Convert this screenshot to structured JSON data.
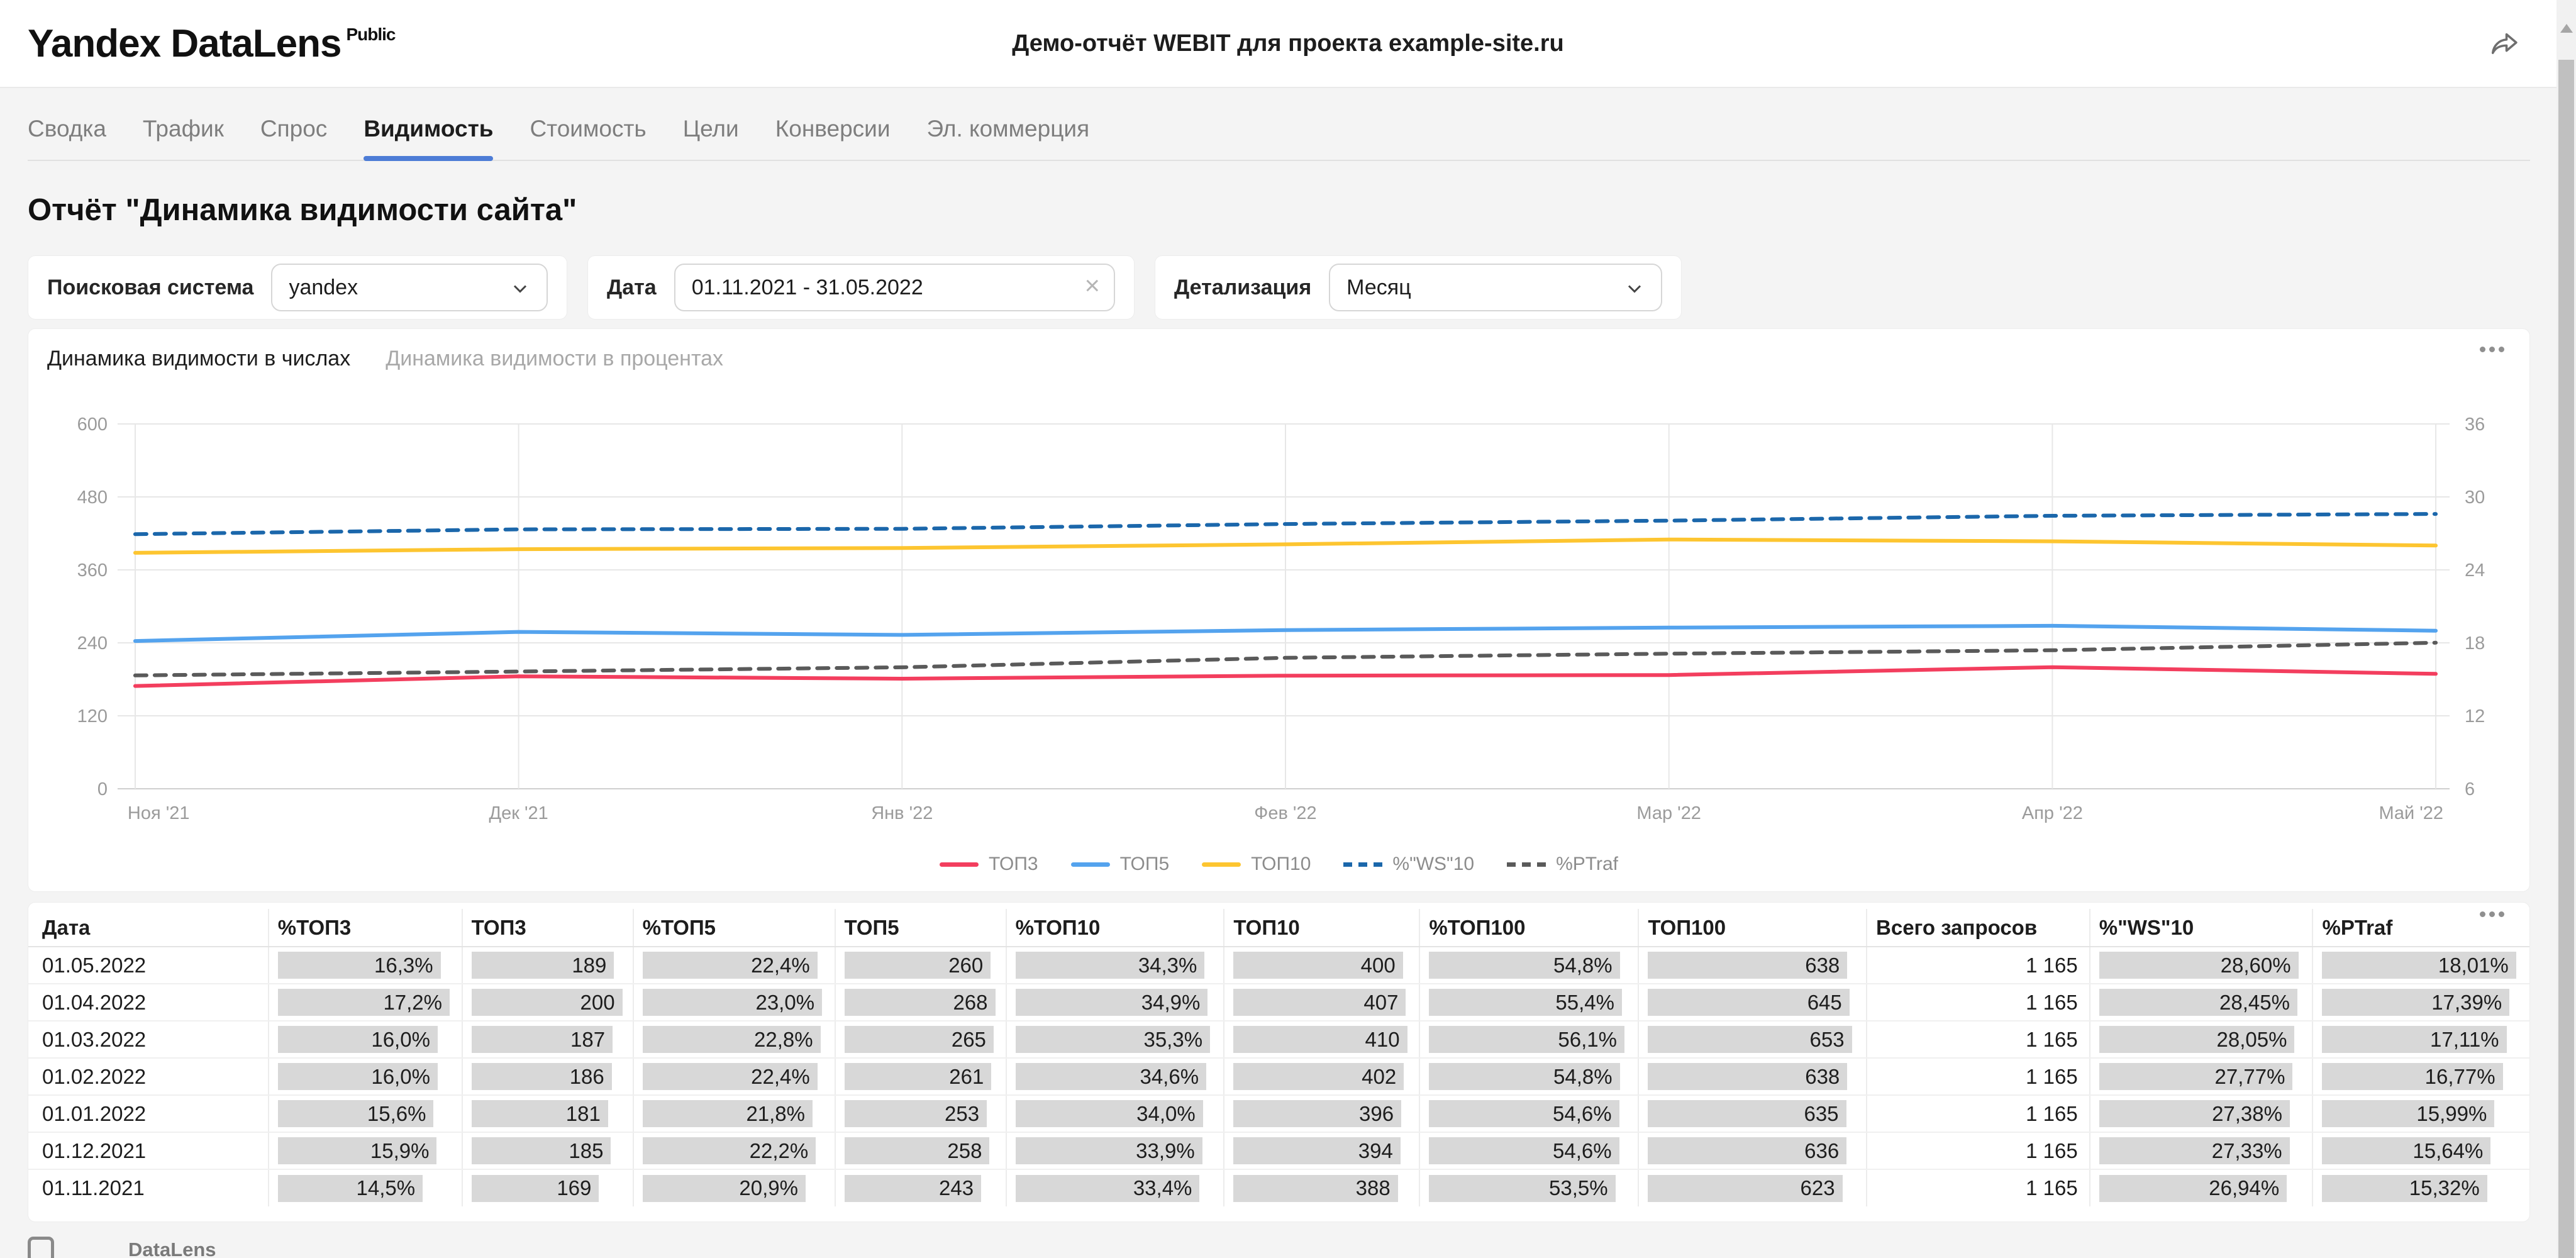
{
  "header": {
    "logo": "Yandex DataLens",
    "logo_badge": "Public",
    "title": "Демо-отчёт WEBIT для проекта example-site.ru"
  },
  "nav_tabs": [
    {
      "label": "Сводка",
      "active": false
    },
    {
      "label": "Трафик",
      "active": false
    },
    {
      "label": "Спрос",
      "active": false
    },
    {
      "label": "Видимость",
      "active": true
    },
    {
      "label": "Стоимость",
      "active": false
    },
    {
      "label": "Цели",
      "active": false
    },
    {
      "label": "Конверсии",
      "active": false
    },
    {
      "label": "Эл. коммерция",
      "active": false
    }
  ],
  "accent_color": "#4d7cd6",
  "page_title": "Отчёт \"Динамика видимости сайта\"",
  "filters": {
    "search_engine": {
      "label": "Поисковая система",
      "value": "yandex"
    },
    "date": {
      "label": "Дата",
      "value": "01.11.2021 - 31.05.2022"
    },
    "detail": {
      "label": "Детализация",
      "value": "Месяц"
    }
  },
  "chart_widget": {
    "tabs": [
      {
        "label": "Динамика видимости в числах",
        "active": true
      },
      {
        "label": "Динамика видимости в процентах",
        "active": false
      }
    ]
  },
  "chart_data": {
    "type": "line",
    "x": [
      "Ноя '21",
      "Дек '21",
      "Янв '22",
      "Фев '22",
      "Мар '22",
      "Апр '22",
      "Май '22"
    ],
    "left_axis": {
      "ticks": [
        0,
        120,
        240,
        360,
        480,
        600
      ],
      "range": [
        0,
        600
      ]
    },
    "right_axis": {
      "ticks": [
        6,
        12,
        18,
        24,
        30,
        36
      ],
      "range": [
        6,
        36
      ]
    },
    "grid": true,
    "legend_position": "bottom",
    "series": [
      {
        "name": "ТОП3",
        "color": "#f33e5e",
        "axis": "left",
        "dash": false,
        "values": [
          169,
          185,
          181,
          186,
          187,
          200,
          189
        ]
      },
      {
        "name": "ТОП5",
        "color": "#54a3ee",
        "axis": "left",
        "dash": false,
        "values": [
          243,
          258,
          253,
          261,
          265,
          268,
          260
        ]
      },
      {
        "name": "ТОП10",
        "color": "#fdc530",
        "axis": "left",
        "dash": false,
        "values": [
          388,
          394,
          396,
          402,
          410,
          407,
          400
        ]
      },
      {
        "name": "%\"WS\"10",
        "color": "#1b67ab",
        "axis": "right",
        "dash": true,
        "values": [
          26.94,
          27.33,
          27.38,
          27.77,
          28.05,
          28.45,
          28.6
        ]
      },
      {
        "name": "%PTraf",
        "color": "#5a5a5a",
        "axis": "right",
        "dash": true,
        "values": [
          15.32,
          15.64,
          15.99,
          16.77,
          17.11,
          17.39,
          18.01
        ]
      }
    ]
  },
  "table": {
    "columns": [
      {
        "label": "Дата",
        "style": "date"
      },
      {
        "label": "%ТОП3",
        "style": "bar"
      },
      {
        "label": "ТОП3",
        "style": "bar"
      },
      {
        "label": "%ТОП5",
        "style": "bar"
      },
      {
        "label": "ТОП5",
        "style": "bar"
      },
      {
        "label": "%ТОП10",
        "style": "bar"
      },
      {
        "label": "ТОП10",
        "style": "bar"
      },
      {
        "label": "%ТОП100",
        "style": "bar"
      },
      {
        "label": "ТОП100",
        "style": "bar"
      },
      {
        "label": "Всего запросов",
        "style": "plain"
      },
      {
        "label": "%\"WS\"10",
        "style": "bar"
      },
      {
        "label": "%PTraf",
        "style": "bar"
      }
    ],
    "rows": [
      [
        "01.05.2022",
        "16,3%",
        "189",
        "22,4%",
        "260",
        "34,3%",
        "400",
        "54,8%",
        "638",
        "1 165",
        "28,60%",
        "18,01%"
      ],
      [
        "01.04.2022",
        "17,2%",
        "200",
        "23,0%",
        "268",
        "34,9%",
        "407",
        "55,4%",
        "645",
        "1 165",
        "28,45%",
        "17,39%"
      ],
      [
        "01.03.2022",
        "16,0%",
        "187",
        "22,8%",
        "265",
        "35,3%",
        "410",
        "56,1%",
        "653",
        "1 165",
        "28,05%",
        "17,11%"
      ],
      [
        "01.02.2022",
        "16,0%",
        "186",
        "22,4%",
        "261",
        "34,6%",
        "402",
        "54,8%",
        "638",
        "1 165",
        "27,77%",
        "16,77%"
      ],
      [
        "01.01.2022",
        "15,6%",
        "181",
        "21,8%",
        "253",
        "34,0%",
        "396",
        "54,6%",
        "635",
        "1 165",
        "27,38%",
        "15,99%"
      ],
      [
        "01.12.2021",
        "15,9%",
        "185",
        "22,2%",
        "258",
        "33,9%",
        "394",
        "54,6%",
        "636",
        "1 165",
        "27,33%",
        "15,64%"
      ],
      [
        "01.11.2021",
        "14,5%",
        "169",
        "20,9%",
        "243",
        "33,4%",
        "388",
        "53,5%",
        "623",
        "1 165",
        "26,94%",
        "15,32%"
      ]
    ]
  },
  "footer": {
    "brand": "DataLens"
  }
}
